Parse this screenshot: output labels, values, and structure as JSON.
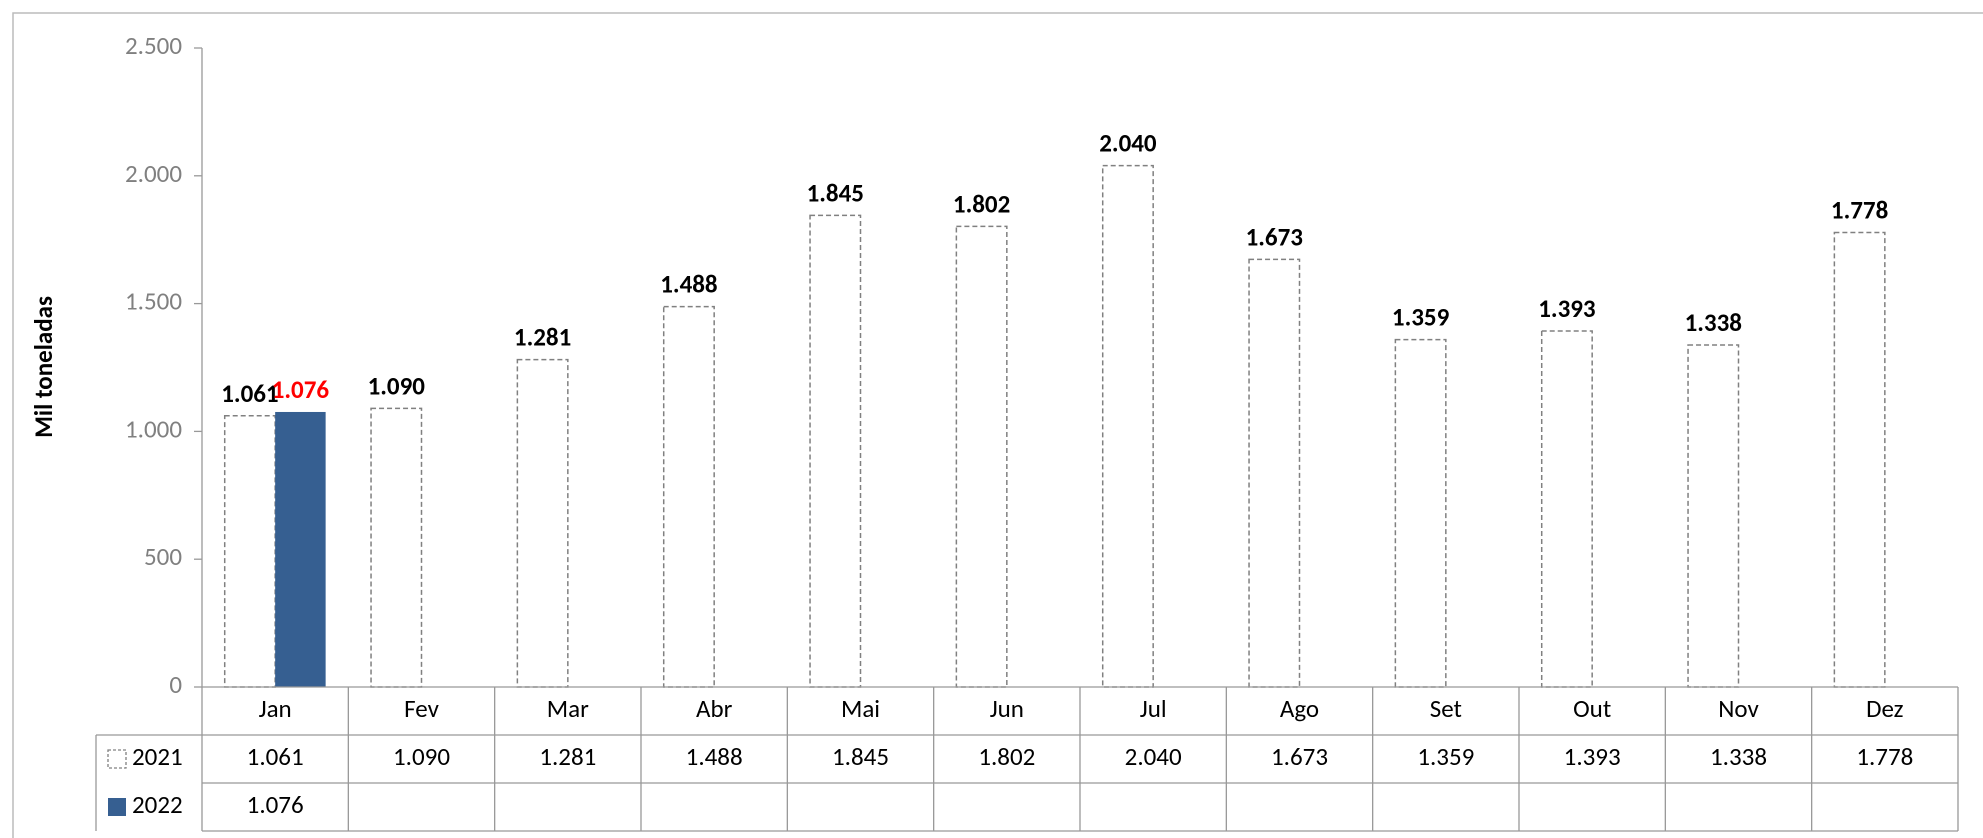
{
  "chart_data": {
    "type": "bar",
    "y_axis_label": "Mil toneladas",
    "categories": [
      "Jan",
      "Fev",
      "Mar",
      "Abr",
      "Mai",
      "Jun",
      "Jul",
      "Ago",
      "Set",
      "Out",
      "Nov",
      "Dez"
    ],
    "series": [
      {
        "name": "2021",
        "color": "#ffffff",
        "border": "dashed",
        "label_color": "#000000",
        "values": [
          1061,
          1090,
          1281,
          1488,
          1845,
          1802,
          2040,
          1673,
          1359,
          1393,
          1338,
          1778
        ],
        "value_labels": [
          "1.061",
          "1.090",
          "1.281",
          "1.488",
          "1.845",
          "1.802",
          "2.040",
          "1.673",
          "1.359",
          "1.393",
          "1.338",
          "1.778"
        ]
      },
      {
        "name": "2022",
        "color": "#365f91",
        "border": "none",
        "label_color": "#ff0000",
        "values": [
          1076,
          null,
          null,
          null,
          null,
          null,
          null,
          null,
          null,
          null,
          null,
          null
        ],
        "value_labels": [
          "1.076",
          null,
          null,
          null,
          null,
          null,
          null,
          null,
          null,
          null,
          null,
          null
        ]
      }
    ],
    "ylim": [
      0,
      2500
    ],
    "yticks": [
      0,
      500,
      {
        "value": 1000,
        "label": "1.000"
      },
      {
        "value": 1500,
        "label": "1.500"
      },
      {
        "value": 2000,
        "label": "2.000"
      },
      {
        "value": 2500,
        "label": "2.500"
      }
    ],
    "data_table": true
  }
}
